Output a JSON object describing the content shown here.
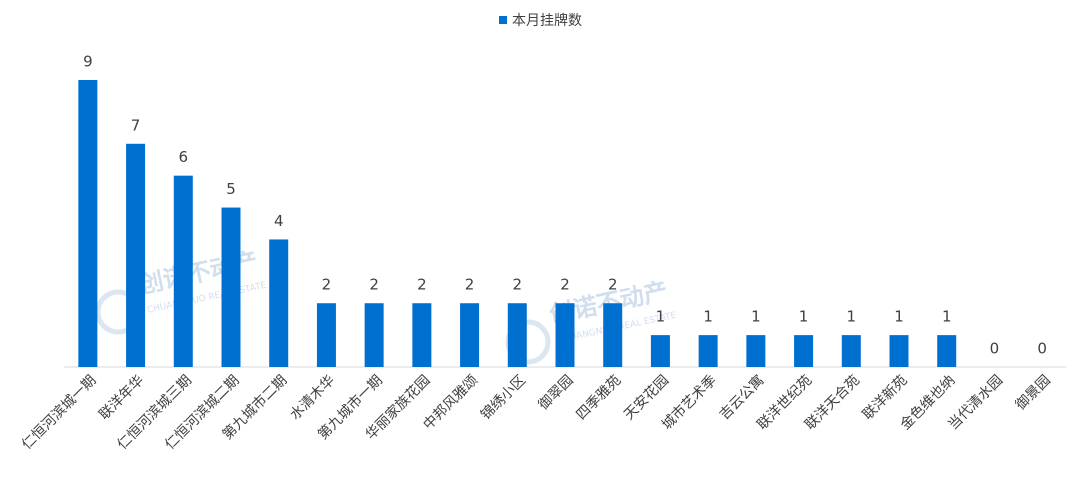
{
  "chart_data": {
    "type": "bar",
    "categories": [
      "仁恒河滨城一期",
      "联洋年华",
      "仁恒河滨城三期",
      "仁恒河滨城二期",
      "第九城市二期",
      "水清木华",
      "第九城市一期",
      "华丽家族花园",
      "中邦风雅颂",
      "锦绣小区",
      "御翠园",
      "四季雅苑",
      "天安花园",
      "城市艺术季",
      "吉云公寓",
      "联洋世纪苑",
      "联洋天合苑",
      "联洋新苑",
      "金色维也纳",
      "当代清水园",
      "御景园"
    ],
    "series": [
      {
        "name": "本月挂牌数",
        "color": "#0070d0",
        "values": [
          9,
          7,
          6,
          5,
          4,
          2,
          2,
          2,
          2,
          2,
          2,
          2,
          1,
          1,
          1,
          1,
          1,
          1,
          1,
          0,
          0
        ]
      }
    ],
    "ylim": [
      0,
      9
    ],
    "legend": "top",
    "watermark": [
      "创诺不动产",
      "CHUANGNUO REAL ESTATE"
    ]
  }
}
